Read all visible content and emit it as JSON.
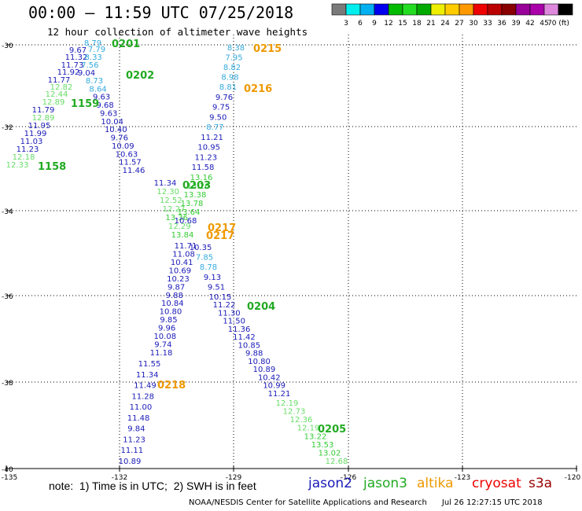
{
  "header": {
    "title": "00:00 – 11:59 UTC 07/25/2018",
    "subtitle": "12 hour collection of altimeter wave heights"
  },
  "colorbar": {
    "colors": [
      "#7a7a7a",
      "#00eeee",
      "#00b0f0",
      "#0000ee",
      "#00bb00",
      "#22dd22",
      "#00aa00",
      "#eeee00",
      "#ffcc00",
      "#ff9900",
      "#ee0000",
      "#bb0000",
      "#880000",
      "#990099",
      "#aa00aa",
      "#dd88dd",
      "#000000"
    ],
    "labels": [
      "3",
      "6",
      "9",
      "12",
      "15",
      "18",
      "21",
      "24",
      "27",
      "30",
      "33",
      "36",
      "39",
      "42",
      "45",
      "70 (ft)"
    ]
  },
  "axes": {
    "lat_labels": [
      "-30",
      "-32",
      "-34",
      "-36",
      "-38",
      "-40"
    ],
    "lon_labels": [
      "-135",
      "-132",
      "-129",
      "-126",
      "-123",
      "-120"
    ]
  },
  "palette": {
    "jason2": "#1a1ab8",
    "jason3": "#22aa22",
    "altika": "#ee9900",
    "cryosat": "#ee0000",
    "s3a": "#990000",
    "wave_light_blue": "#33aadd",
    "wave_light_green": "#66dd66",
    "wave_mid_green": "#33cc33"
  },
  "tracks": {
    "t1_values": [
      "8.79",
      "9.67",
      "11.32",
      "11.73",
      "11.92",
      "11.77",
      "12.82",
      "12.44",
      "12.89",
      "11.79",
      "12.89",
      "11.95",
      "11.99",
      "11.03",
      "11.23",
      "12.18",
      "12.33"
    ],
    "t1_labels": [
      "0201",
      "1159",
      "1158"
    ],
    "t2_values": [
      "7.79",
      "8.33",
      "7.56",
      "9.04",
      "8.73",
      "8.64",
      "9.63",
      "9.68",
      "9.63",
      "10.04",
      "10.40",
      "9.76",
      "10.09",
      "10.63",
      "11.57",
      "11.46",
      "11.34",
      "12.30",
      "12.52",
      "12.27",
      "13.36",
      "12.29",
      "13.84",
      "11.71",
      "11.08",
      "10.41",
      "10.69",
      "10.23",
      "9.87",
      "9.88",
      "10.84",
      "10.80",
      "9.85",
      "9.96",
      "10.08",
      "9.74",
      "11.18",
      "11.55",
      "11.34",
      "11.49",
      "11.28",
      "11.00",
      "11.48",
      "9.84",
      "11.23",
      "11.11",
      "10.89"
    ],
    "t2_labels": [
      "0202",
      "0203",
      "0217",
      "0218"
    ],
    "t3_values": [
      "8.38",
      "7.95",
      "8.82",
      "8.98",
      "8.81",
      "9.76",
      "9.75",
      "9.50",
      "8.77",
      "11.21",
      "10.95",
      "11.23",
      "11.58",
      "13.16",
      "13.26",
      "13.38",
      "13.78",
      "13.64",
      "10.68",
      "10.35",
      "7.85",
      "8.78",
      "9.13",
      "9.51",
      "10.15",
      "11.22",
      "11.30",
      "11.50",
      "11.36",
      "11.42",
      "10.85",
      "9.88",
      "10.80",
      "10.89",
      "10.42",
      "10.99",
      "11.21",
      "12.19",
      "12.73",
      "12.36",
      "12.19",
      "13.22",
      "13.53",
      "13.02",
      "12.68"
    ],
    "t3_labels": [
      "0215",
      "0216",
      "0217",
      "0204",
      "0205"
    ]
  },
  "footer": {
    "note": "note:  1) Time is in UTC;  2) SWH is in feet",
    "sat_jason2": "jason2",
    "sat_jason3": "jason3",
    "sat_altika": "altika",
    "sat_cryosat": "cryosat",
    "sat_s3a": "s3a",
    "credit": "NOAA/NESDIS Center for Satellite Applications and Research      Jul 26 12:27:15 UTC 2018"
  }
}
